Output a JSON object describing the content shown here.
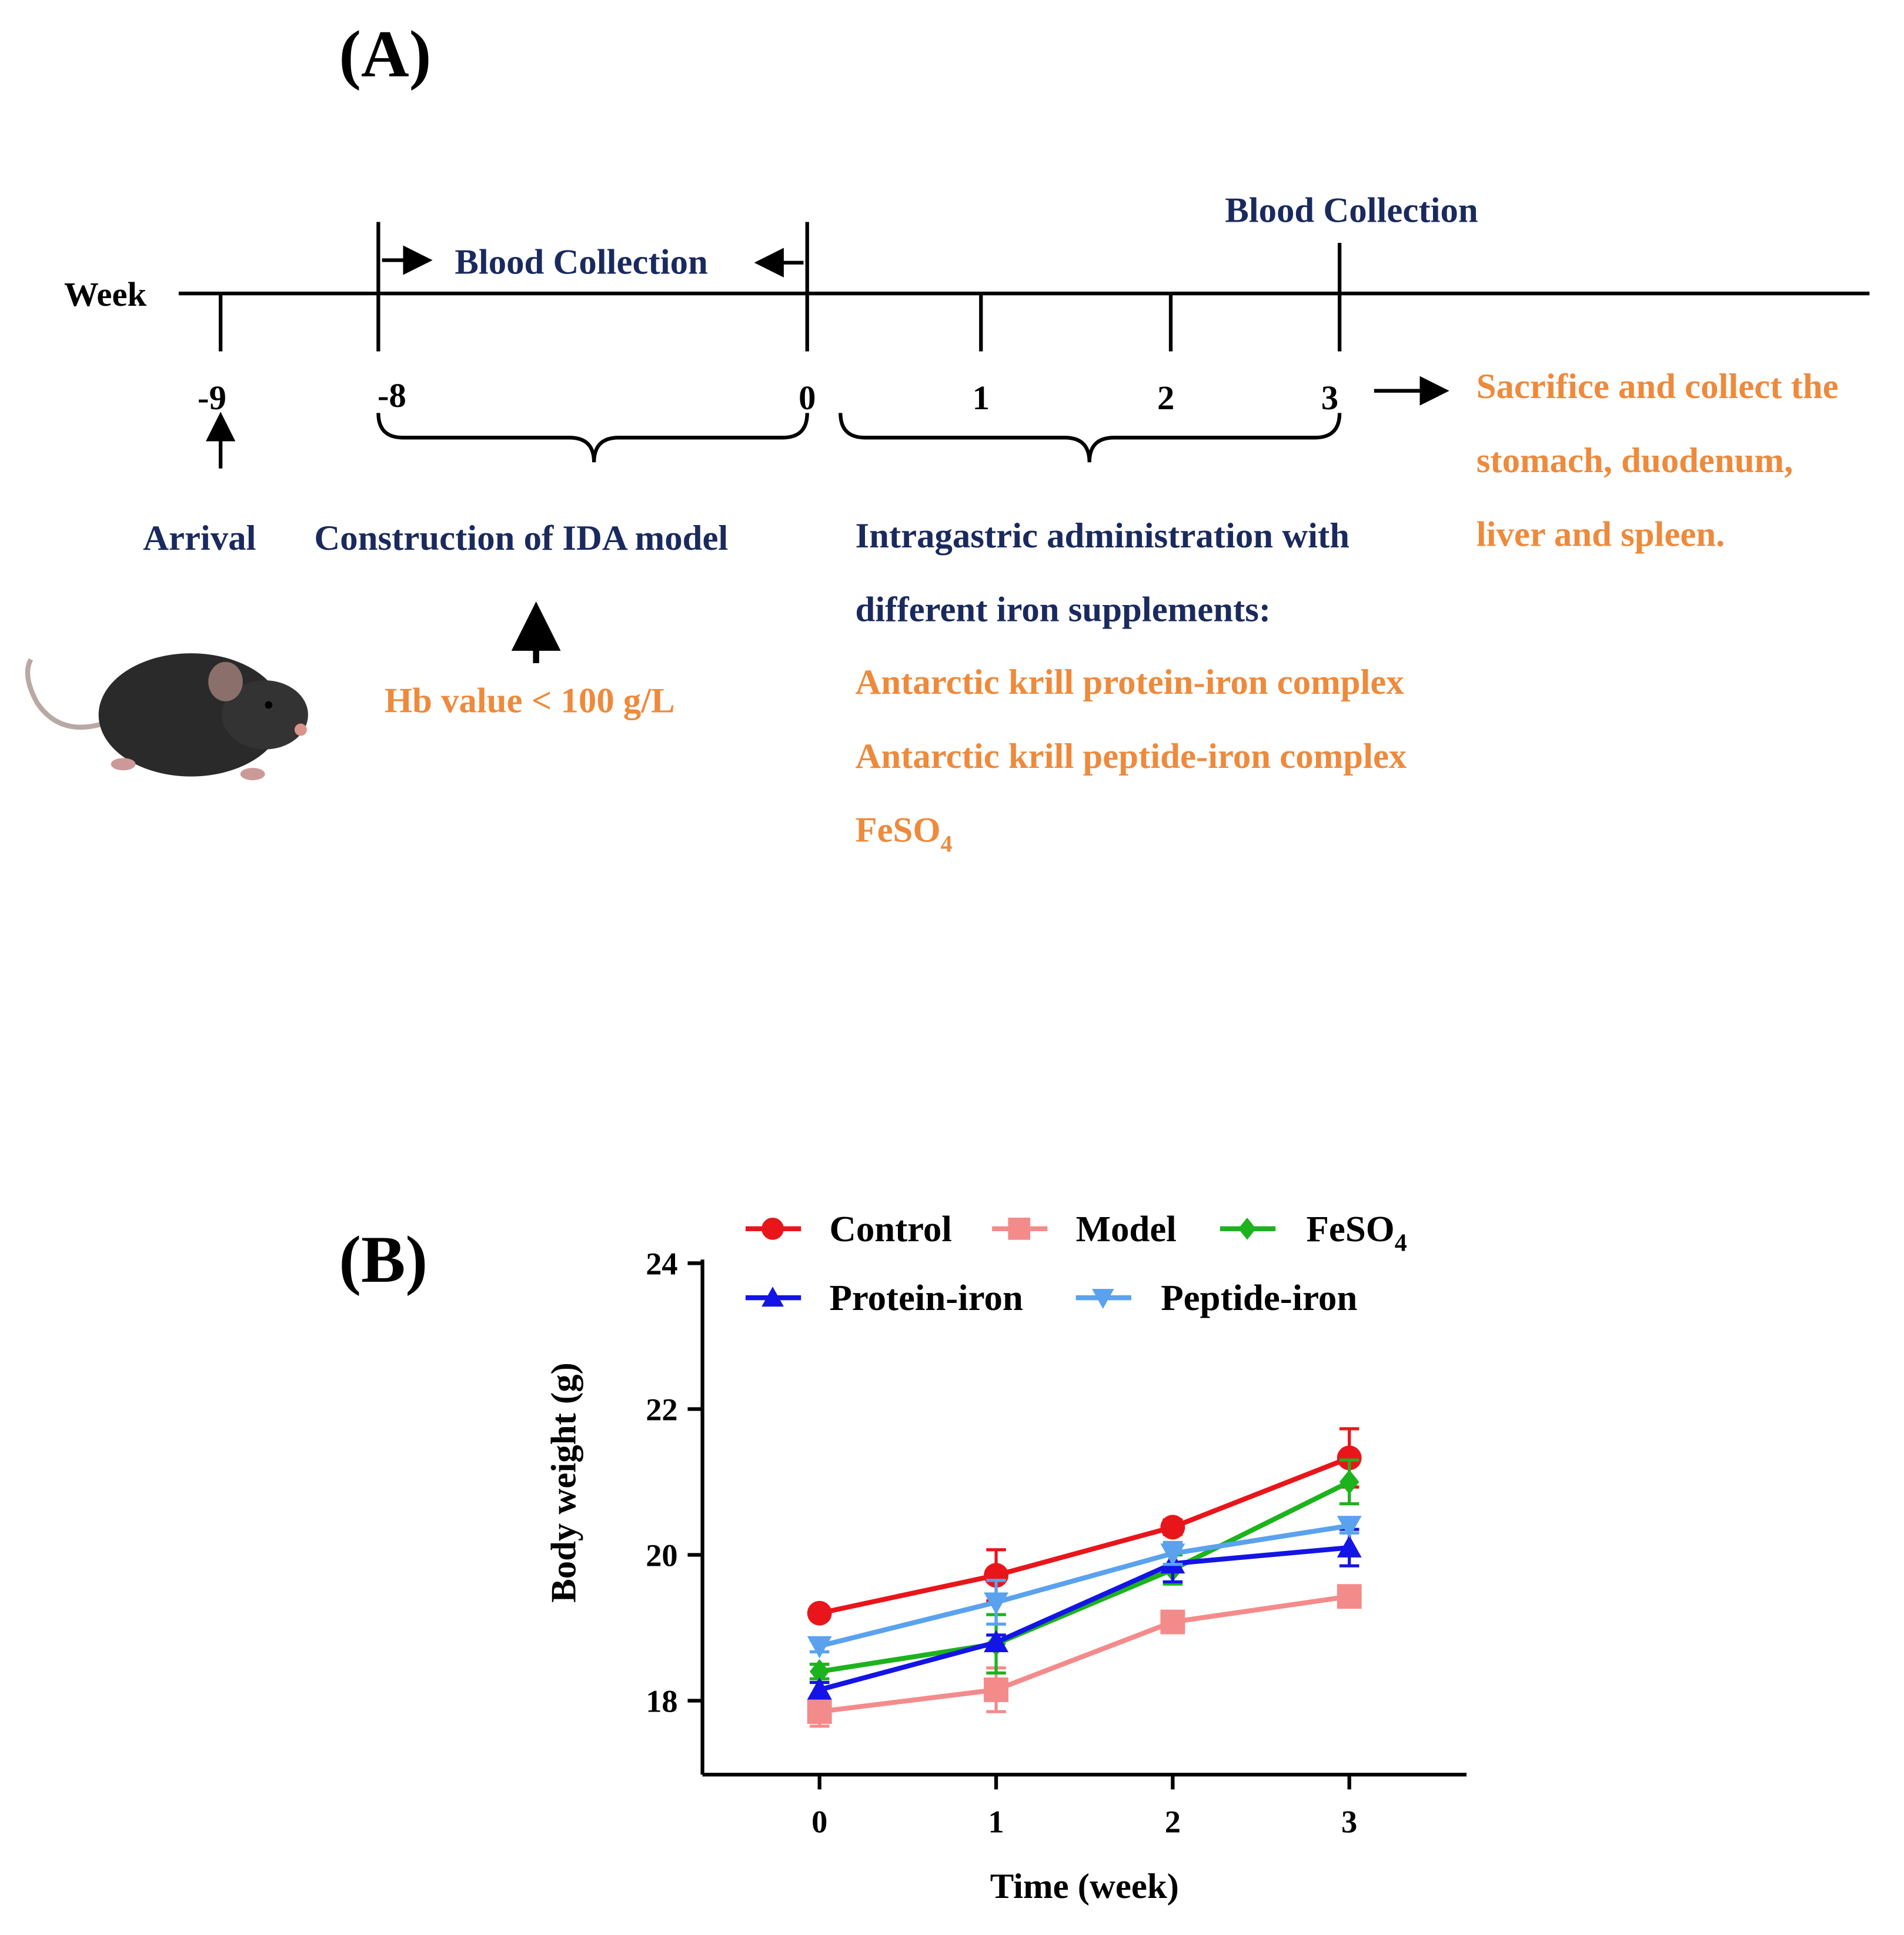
{
  "panel_a": {
    "label": "(A)",
    "axis_label": "Week",
    "ticks": [
      "-9",
      "-8",
      "0",
      "1",
      "2",
      "3"
    ],
    "blood_collection_1": "Blood Collection",
    "blood_collection_2": "Blood Collection",
    "arrival": "Arrival",
    "construction": "Construction of IDA model",
    "hb_value": "Hb value < 100 g/L",
    "intragastric_line1": "Intragastric administration with",
    "intragastric_line2": "different iron supplements:",
    "supplements": [
      "Antarctic krill protein-iron complex",
      "Antarctic krill peptide-iron complex",
      "FeSO",
      "4"
    ],
    "sacrifice": [
      "Sacrifice and collect the",
      "stomach, duodenum,",
      "liver and spleen."
    ]
  },
  "panel_b": {
    "label": "(B)"
  },
  "chart_data": {
    "type": "line",
    "title": "",
    "xlabel": "Time (week)",
    "ylabel": "Body weight (g)",
    "x": [
      0,
      1,
      2,
      3
    ],
    "xticks": [
      "0",
      "1",
      "2",
      "3"
    ],
    "yticks": [
      "18",
      "20",
      "22",
      "24"
    ],
    "ylim": [
      17,
      24
    ],
    "legend_position": "top",
    "series": [
      {
        "name": "Control",
        "sub": "",
        "color": "#e8161b",
        "marker": "circle",
        "values": [
          19.2,
          19.72,
          20.38,
          21.33
        ],
        "errors": [
          0.05,
          0.35,
          0.1,
          0.4
        ]
      },
      {
        "name": "Model",
        "sub": "",
        "color": "#f48b8b",
        "marker": "square",
        "values": [
          17.85,
          18.15,
          19.08,
          19.43
        ],
        "errors": [
          0.2,
          0.3,
          0.05,
          0.05
        ]
      },
      {
        "name": "FeSO",
        "sub": "4",
        "color": "#1db31d",
        "marker": "diamond",
        "values": [
          18.4,
          18.78,
          19.8,
          21.0
        ],
        "errors": [
          0.1,
          0.4,
          0.2,
          0.3
        ]
      },
      {
        "name": "Protein-iron",
        "sub": "",
        "color": "#1414e6",
        "marker": "triangle-up",
        "values": [
          18.15,
          18.8,
          19.88,
          20.1
        ],
        "errors": [
          0.1,
          0.1,
          0.25,
          0.25
        ]
      },
      {
        "name": "Peptide-iron",
        "sub": "",
        "color": "#5aa2ee",
        "marker": "triangle-down",
        "values": [
          18.75,
          19.35,
          20.02,
          20.4
        ],
        "errors": [
          0.08,
          0.3,
          0.15,
          0.1
        ]
      }
    ]
  }
}
